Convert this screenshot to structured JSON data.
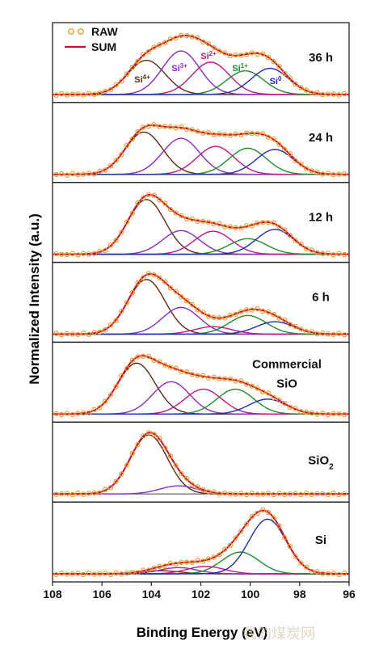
{
  "chart_data": {
    "type": "line",
    "xlabel": "Binding Energy (eV)",
    "ylabel": "Normalized Intensity (a.u.)",
    "xlim": [
      108,
      96
    ],
    "x_reversed": true,
    "x_ticks": [
      108,
      106,
      104,
      102,
      100,
      98,
      96
    ],
    "legend": {
      "placement": "top-left",
      "entries": [
        "RAW",
        "SUM"
      ]
    },
    "colors": {
      "raw": "#e8a030",
      "sum": "#c8102e",
      "Si4+": "#5a2a1a",
      "Si3+": "#8a2bbf",
      "Si2+": "#c0158a",
      "Si1+": "#1f8a2e",
      "Si0": "#1f2fa8"
    },
    "component_labels": [
      "Si4+",
      "Si3+",
      "Si2+",
      "Si1+",
      "Si0"
    ],
    "panels": [
      {
        "label": "36 h",
        "components": [
          {
            "name": "Si4+",
            "center": 104.2,
            "height": 0.55
          },
          {
            "name": "Si3+",
            "center": 102.8,
            "height": 0.7
          },
          {
            "name": "Si2+",
            "center": 101.6,
            "height": 0.52
          },
          {
            "name": "Si1+",
            "center": 100.2,
            "height": 0.38
          },
          {
            "name": "Si0",
            "center": 99.2,
            "height": 0.42
          }
        ]
      },
      {
        "label": "24 h",
        "components": [
          {
            "name": "Si4+",
            "center": 104.3,
            "height": 0.68
          },
          {
            "name": "Si3+",
            "center": 102.8,
            "height": 0.58
          },
          {
            "name": "Si2+",
            "center": 101.4,
            "height": 0.45
          },
          {
            "name": "Si1+",
            "center": 100.1,
            "height": 0.42
          },
          {
            "name": "Si0",
            "center": 99.0,
            "height": 0.4
          }
        ]
      },
      {
        "label": "12 h",
        "components": [
          {
            "name": "Si4+",
            "center": 104.2,
            "height": 0.88
          },
          {
            "name": "Si3+",
            "center": 102.8,
            "height": 0.38
          },
          {
            "name": "Si2+",
            "center": 101.5,
            "height": 0.37
          },
          {
            "name": "Si1+",
            "center": 100.1,
            "height": 0.25
          },
          {
            "name": "Si0",
            "center": 99.0,
            "height": 0.4
          }
        ]
      },
      {
        "label": "6 h",
        "components": [
          {
            "name": "Si4+",
            "center": 104.2,
            "height": 0.88
          },
          {
            "name": "Si3+",
            "center": 102.8,
            "height": 0.43
          },
          {
            "name": "Si2+",
            "center": 101.5,
            "height": 0.12
          },
          {
            "name": "Si1+",
            "center": 100.1,
            "height": 0.3
          },
          {
            "name": "Si0",
            "center": 99.0,
            "height": 0.2
          }
        ]
      },
      {
        "label": "Commercial\nSiO",
        "components": [
          {
            "name": "Si4+",
            "center": 104.6,
            "height": 0.82
          },
          {
            "name": "Si3+",
            "center": 103.2,
            "height": 0.52
          },
          {
            "name": "Si2+",
            "center": 101.9,
            "height": 0.4
          },
          {
            "name": "Si1+",
            "center": 100.6,
            "height": 0.4
          },
          {
            "name": "Si0",
            "center": 99.3,
            "height": 0.24
          }
        ]
      },
      {
        "label": "SiO2",
        "components": [
          {
            "name": "Si4+",
            "center": 104.1,
            "height": 0.95
          },
          {
            "name": "Si3+",
            "center": 102.9,
            "height": 0.13
          }
        ]
      },
      {
        "label": "Si",
        "components": [
          {
            "name": "Si4+",
            "center": 103.6,
            "height": 0.05
          },
          {
            "name": "Si3+",
            "center": 102.9,
            "height": 0.1
          },
          {
            "name": "Si2+",
            "center": 101.8,
            "height": 0.12
          },
          {
            "name": "Si1+",
            "center": 100.4,
            "height": 0.35
          },
          {
            "name": "Si0",
            "center": 99.3,
            "height": 0.88
          }
        ]
      }
    ]
  },
  "watermark": "我的煤炭网"
}
